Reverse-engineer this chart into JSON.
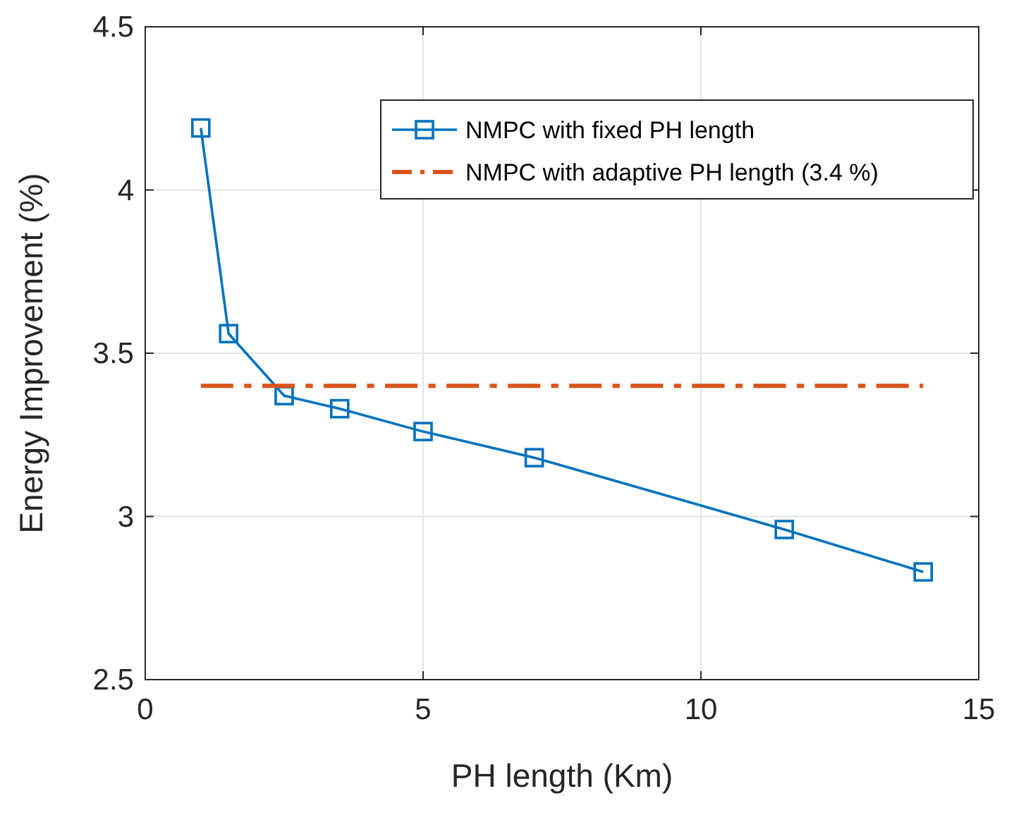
{
  "chart_data": {
    "type": "line",
    "xlabel": "PH length (Km)",
    "ylabel": "Energy Improvement (%)",
    "xlim": [
      0,
      15
    ],
    "xticks": [
      0,
      5,
      10,
      15
    ],
    "ylim": [
      2.5,
      4.5
    ],
    "yticks": [
      2.5,
      3,
      3.5,
      4,
      4.5
    ],
    "grid": true,
    "legend": "top right",
    "series": [
      {
        "name": "NMPC with fixed PH length",
        "color": "#0072bd",
        "marker": "square",
        "line_style": "solid",
        "x": [
          1,
          1.5,
          2.5,
          3.5,
          5,
          7,
          11.5,
          14
        ],
        "values": [
          4.19,
          3.56,
          3.37,
          3.33,
          3.26,
          3.18,
          2.96,
          2.83
        ]
      },
      {
        "name": "NMPC with adaptive PH length (3.4 %)",
        "color": "#d95319",
        "marker": "none",
        "line_style": "dashed",
        "x": [
          1,
          14
        ],
        "values": [
          3.4,
          3.4
        ]
      }
    ]
  }
}
